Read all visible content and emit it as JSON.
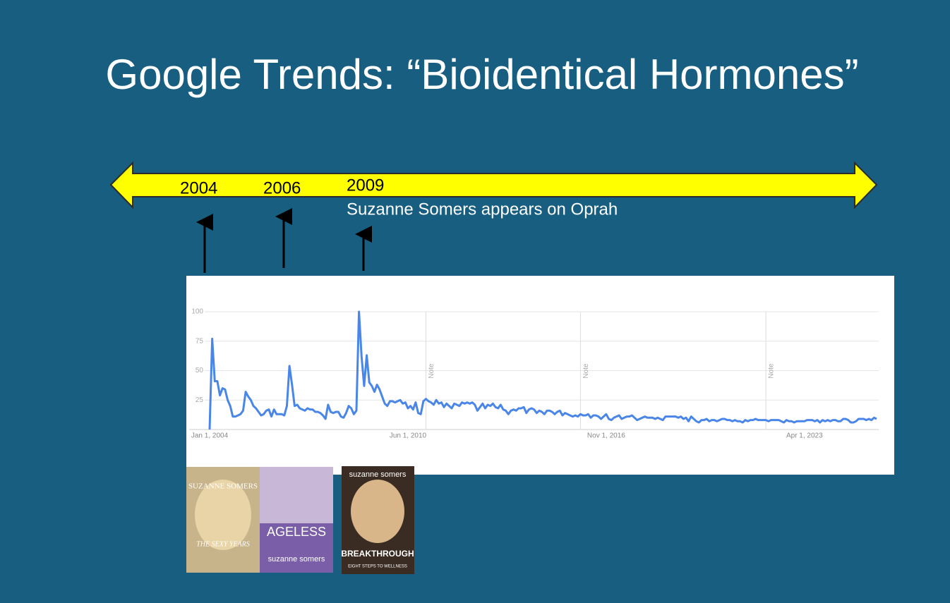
{
  "slide": {
    "title": "Google Trends: “Bioidentical Hormones”",
    "timeline": [
      "2004",
      "2006",
      "2009"
    ],
    "event": "Suzanne Somers appears on Oprah",
    "books": [
      {
        "author": "SUZANNE SOMERS",
        "title": "THE SEXY YEARS"
      },
      {
        "title": "AGELESS",
        "author": "suzanne somers"
      },
      {
        "author": "suzanne somers",
        "title": "BREAKTHROUGH",
        "subtitle": "EIGHT STEPS TO WELLNESS"
      }
    ]
  },
  "chart_data": {
    "type": "line",
    "categories": [
      "Jan 1, 2004",
      null,
      null,
      null,
      null,
      null,
      null,
      null,
      null,
      null,
      null,
      null,
      null,
      null,
      null,
      null,
      null,
      null,
      null,
      null,
      null,
      null,
      null,
      null,
      null,
      null,
      null,
      null,
      null,
      null,
      null,
      null,
      null,
      null,
      null,
      null,
      null,
      null,
      null,
      null,
      null,
      null,
      null,
      null,
      null,
      null,
      null,
      null,
      null,
      null,
      null,
      null,
      null,
      null,
      null,
      null,
      null,
      null,
      null,
      null,
      null,
      null,
      null,
      null,
      null,
      null,
      null,
      null,
      null,
      null,
      null,
      null,
      null,
      null,
      null,
      null,
      null,
      "Jun 1, 2010",
      null,
      null,
      null,
      null,
      null,
      null,
      null,
      null,
      null,
      null,
      null,
      null,
      null,
      null,
      null,
      null,
      null,
      null,
      null,
      null,
      null,
      null,
      null,
      null,
      null,
      null,
      null,
      null,
      null,
      null,
      null,
      null,
      null,
      null,
      null,
      null,
      null,
      null,
      null,
      null,
      null,
      null,
      null,
      null,
      null,
      null,
      null,
      null,
      null,
      null,
      null,
      null,
      null,
      null,
      null,
      null,
      null,
      null,
      null,
      null,
      null,
      null,
      null,
      null,
      null,
      null,
      null,
      null,
      null,
      null,
      null,
      null,
      null,
      null,
      null,
      null,
      "Nov 1, 2016",
      null,
      null,
      null,
      null,
      null,
      null,
      null,
      null,
      null,
      null,
      null,
      null,
      null,
      null,
      null,
      null,
      null,
      null,
      null,
      null,
      null,
      null,
      null,
      null,
      null,
      null,
      null,
      null,
      null,
      null,
      null,
      null,
      null,
      null,
      null,
      null,
      null,
      null,
      null,
      null,
      null,
      null,
      null,
      null,
      null,
      null,
      null,
      null,
      null,
      null,
      null,
      null,
      null,
      null,
      null,
      null,
      null,
      null,
      null,
      null,
      null,
      null,
      null,
      null,
      null,
      null,
      null,
      null,
      null,
      null,
      null,
      null,
      null,
      null,
      null,
      null,
      "Apr 1, 2023",
      null,
      null,
      null,
      null,
      null,
      null,
      null,
      null,
      null,
      null,
      null,
      null,
      null,
      null,
      null,
      null,
      null,
      null,
      null,
      null,
      null,
      null,
      null,
      null,
      null,
      null,
      null,
      null
    ],
    "values": [
      0,
      77,
      41,
      41,
      29,
      35,
      34,
      25,
      20,
      11,
      11,
      12,
      13,
      16,
      32,
      28,
      25,
      20,
      18,
      15,
      12,
      13,
      16,
      17,
      11,
      17,
      13,
      13,
      13,
      12,
      20,
      54,
      38,
      20,
      21,
      18,
      17,
      16,
      18,
      17,
      17,
      15,
      15,
      14,
      12,
      9,
      21,
      15,
      14,
      15,
      15,
      11,
      10,
      14,
      20,
      18,
      13,
      16,
      100,
      62,
      37,
      63,
      40,
      37,
      32,
      38,
      34,
      28,
      22,
      20,
      24,
      24,
      23,
      24,
      25,
      22,
      23,
      18,
      20,
      17,
      23,
      14,
      13,
      24,
      26,
      24,
      23,
      21,
      25,
      22,
      23,
      19,
      22,
      20,
      18,
      22,
      21,
      20,
      23,
      22,
      23,
      22,
      23,
      21,
      16,
      19,
      22,
      18,
      21,
      20,
      22,
      19,
      18,
      21,
      17,
      16,
      13,
      16,
      17,
      16,
      18,
      18,
      19,
      14,
      17,
      18,
      17,
      14,
      16,
      15,
      13,
      16,
      16,
      15,
      13,
      15,
      16,
      12,
      14,
      13,
      12,
      11,
      12,
      11,
      13,
      12,
      12,
      13,
      10,
      12,
      12,
      11,
      9,
      11,
      13,
      9,
      8,
      10,
      11,
      12,
      9,
      10,
      11,
      11,
      12,
      10,
      8,
      9,
      10,
      11,
      10,
      10,
      10,
      9,
      10,
      9,
      8,
      11,
      11,
      11,
      11,
      11,
      10,
      11,
      9,
      10,
      7,
      11,
      9,
      7,
      6,
      8,
      8,
      9,
      7,
      8,
      8,
      7,
      8,
      9,
      9,
      8,
      8,
      7,
      8,
      7,
      7,
      6,
      8,
      7,
      8,
      8,
      9,
      8,
      8,
      8,
      8,
      7,
      8,
      8,
      8,
      8,
      7,
      6,
      8,
      7,
      7,
      6,
      7,
      7,
      7,
      7,
      8,
      8,
      8,
      7,
      8,
      6,
      8,
      7,
      8,
      7,
      8,
      8,
      7,
      7,
      9,
      9,
      8,
      6,
      6,
      7,
      9,
      9,
      9,
      8,
      9,
      8,
      10,
      9
    ],
    "color": "#4a86e8",
    "annotations": [
      "Note",
      "Note",
      "Note"
    ],
    "ylim": [
      0,
      100
    ],
    "yticks": [
      25,
      50,
      75,
      100
    ],
    "grid": true
  }
}
